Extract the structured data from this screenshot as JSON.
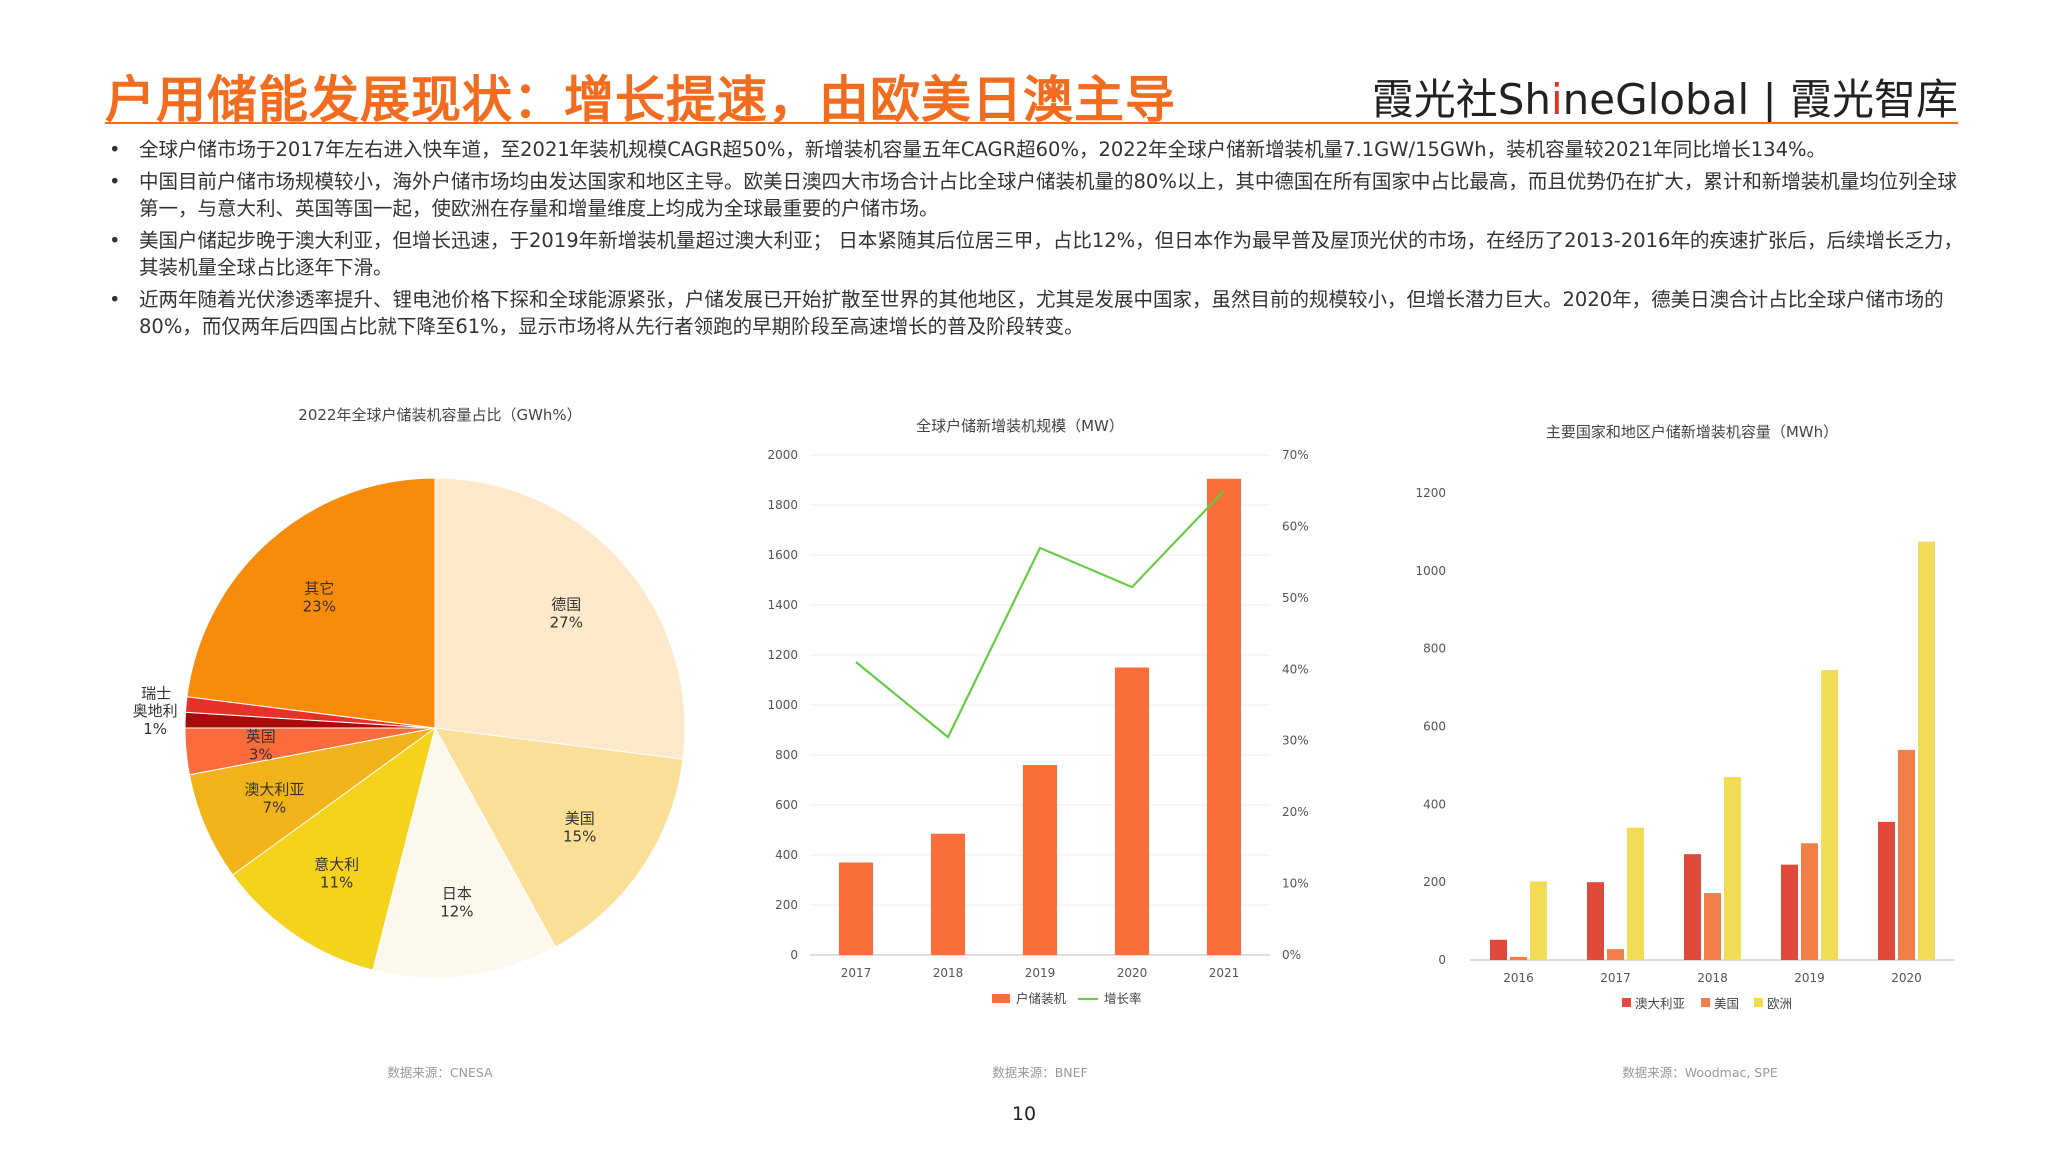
{
  "header": {
    "title": "户用储能发展现状：增长提速，由欧美日澳主导",
    "brand_a": "霞光社Sh",
    "brand_i": "i",
    "brand_b": "neGlobal",
    "brand_sep": "|",
    "brand_c": "霞光智库"
  },
  "bullets": [
    "全球户储市场于2017年左右进入快车道，至2021年装机规模CAGR超50%，新增装机容量五年CAGR超60%，2022年全球户储新增装机量7.1GW/15GWh，装机容量较2021年同比增长134%。",
    "中国目前户储市场规模较小，海外户储市场均由发达国家和地区主导。欧美日澳四大市场合计占比全球户储装机量的80%以上，其中德国在所有国家中占比最高，而且优势仍在扩大，累计和新增装机量均位列全球第一，与意大利、英国等国一起，使欧洲在存量和增量维度上均成为全球最重要的户储市场。",
    "美国户储起步晚于澳大利亚，但增长迅速，于2019年新增装机量超过澳大利亚； 日本紧随其后位居三甲，占比12%，但日本作为最早普及屋顶光伏的市场，在经历了2013-2016年的疾速扩张后，后续增长乏力，其装机量全球占比逐年下滑。",
    "近两年随着光伏渗透率提升、锂电池价格下探和全球能源紧张，户储发展已开始扩散至世界的其他地区，尤其是发展中国家，虽然目前的规模较小，但增长潜力巨大。2020年，德美日澳合计占比全球户储市场的80%，而仅两年后四国占比就下降至61%，显示市场将从先行者领跑的早期阶段至高速增长的普及阶段转变。"
  ],
  "bullet_marker": "•",
  "page_number": "10",
  "chart_data": [
    {
      "type": "pie",
      "title": "2022年全球户储装机容量占比（GWh%）",
      "source": "数据来源：CNESA",
      "slices": [
        {
          "name": "德国",
          "value": 27,
          "label": "27%",
          "color": "#fde9c9"
        },
        {
          "name": "美国",
          "value": 15,
          "label": "15%",
          "color": "#fcdf97"
        },
        {
          "name": "日本",
          "value": 12,
          "label": "12%",
          "color": "#fdf8ee"
        },
        {
          "name": "意大利",
          "value": 11,
          "label": "11%",
          "color": "#f5d21c"
        },
        {
          "name": "澳大利亚",
          "value": 7,
          "label": "7%",
          "color": "#f0b41a"
        },
        {
          "name": "英国",
          "value": 3,
          "label": "3%",
          "color": "#fb6b3c"
        },
        {
          "name": "奥地利",
          "value": 1,
          "label": "1%",
          "color": "#a80b0b"
        },
        {
          "name": "瑞士",
          "value": 1,
          "label": "",
          "color": "#e8312a"
        },
        {
          "name": "其它",
          "value": 23,
          "label": "23%",
          "color": "#f78c0c"
        }
      ]
    },
    {
      "type": "bar",
      "title": "全球户储新增装机规模（MW）",
      "source": "数据来源：BNEF",
      "categories": [
        "2017",
        "2018",
        "2019",
        "2020",
        "2021"
      ],
      "series": [
        {
          "name": "户储装机",
          "type": "bar",
          "axis": "left",
          "color": "#fb6e3a",
          "values": [
            370,
            485,
            760,
            1150,
            1905
          ]
        },
        {
          "name": "增长率",
          "type": "line",
          "axis": "right",
          "color": "#66cc44",
          "values": [
            41,
            30.5,
            57,
            51.5,
            65
          ]
        }
      ],
      "ylim": [
        0,
        2000
      ],
      "yticks": [
        "0",
        "200",
        "400",
        "600",
        "800",
        "1000",
        "1200",
        "1400",
        "1600",
        "1800",
        "2000"
      ],
      "y2lim": [
        0,
        70
      ],
      "y2ticks": [
        "0%",
        "10%",
        "20%",
        "30%",
        "40%",
        "50%",
        "60%",
        "70%"
      ],
      "legend": "bottom"
    },
    {
      "type": "bar",
      "title": "主要国家和地区户储新增装机容量（MWh）",
      "source": "数据来源：Woodmac, SPE",
      "categories": [
        "2016",
        "2017",
        "2018",
        "2019",
        "2020"
      ],
      "series": [
        {
          "name": "澳大利亚",
          "color": "#e04a3a",
          "values": [
            52,
            200,
            272,
            245,
            355
          ]
        },
        {
          "name": "美国",
          "color": "#f27e4a",
          "values": [
            8,
            28,
            172,
            300,
            540
          ]
        },
        {
          "name": "欧洲",
          "color": "#f2dc55",
          "values": [
            202,
            340,
            470,
            745,
            1075
          ]
        }
      ],
      "ylim": [
        0,
        1200
      ],
      "yticks": [
        "0",
        "200",
        "400",
        "600",
        "800",
        "1000",
        "1200"
      ],
      "legend": "bottom"
    }
  ]
}
